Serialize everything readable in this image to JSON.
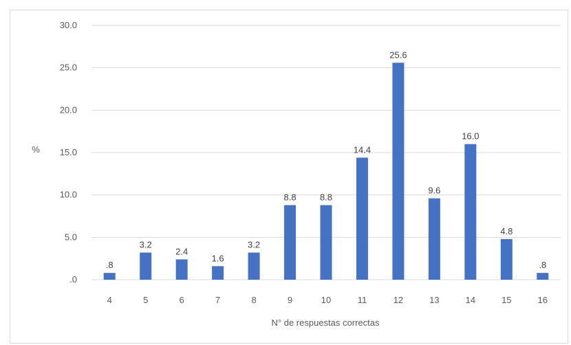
{
  "chart_data": {
    "type": "bar",
    "title": "",
    "xlabel": "N° de respuestas correctas",
    "ylabel": "%",
    "categories": [
      "4",
      "5",
      "6",
      "7",
      "8",
      "9",
      "10",
      "11",
      "12",
      "13",
      "14",
      "15",
      "16"
    ],
    "values": [
      0.8,
      3.2,
      2.4,
      1.6,
      3.2,
      8.8,
      8.8,
      14.4,
      25.6,
      9.6,
      16.0,
      4.8,
      0.8
    ],
    "data_labels": [
      ".8",
      "3.2",
      "2.4",
      "1.6",
      "3.2",
      "8.8",
      "8.8",
      "14.4",
      "25.6",
      "9.6",
      "16.0",
      "4.8",
      ".8"
    ],
    "y_ticks": [
      0,
      5,
      10,
      15,
      20,
      25,
      30
    ],
    "y_tick_labels": [
      ".0",
      "5.0",
      "10.0",
      "15.0",
      "20.0",
      "25.0",
      "30.0"
    ],
    "ylim": [
      0,
      30
    ],
    "grid": true,
    "legend": "none",
    "colors": {
      "bar": "#4472c4",
      "grid": "#d9d9d9",
      "text": "#595959"
    }
  }
}
